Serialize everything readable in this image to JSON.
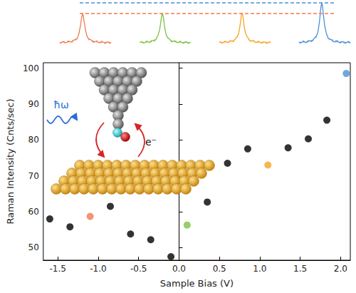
{
  "chart_data": {
    "type": "scatter",
    "xlabel": "Sample Bias (V)",
    "ylabel": "Raman Intensity (Cnts/sec)",
    "x": [
      -1.6,
      -1.35,
      -1.1,
      -0.85,
      -0.6,
      -0.35,
      -0.1,
      0.1,
      0.35,
      0.6,
      0.85,
      1.1,
      1.35,
      1.6,
      1.83,
      2.07
    ],
    "values": [
      58,
      55.8,
      58.7,
      61.5,
      53.8,
      52.2,
      47.5,
      56.3,
      62.7,
      73.5,
      77.5,
      73,
      77.8,
      80.3,
      85.5,
      98.5
    ],
    "colors": [
      "#000000",
      "#000000",
      "#f07a4f",
      "#000000",
      "#000000",
      "#000000",
      "#000000",
      "#7dc242",
      "#000000",
      "#000000",
      "#000000",
      "#f5a623",
      "#000000",
      "#000000",
      "#000000",
      "#4a90d9"
    ],
    "marker": "circle",
    "xlim": [
      -1.68,
      2.12
    ],
    "ylim": [
      46.5,
      101.5
    ],
    "xticks": [
      -1.5,
      {
        "value": -1,
        "label": "-1.0"
      },
      -0.5,
      {
        "value": 0,
        "label": "0.0"
      },
      0.5,
      {
        "value": 1,
        "label": "1.0"
      },
      1.5,
      {
        "value": 2,
        "label": "2.0"
      }
    ],
    "yticks": [
      50,
      60,
      70,
      80,
      90,
      100
    ],
    "grid": false,
    "annotations": [
      "ħω",
      "e⁻"
    ]
  }
}
